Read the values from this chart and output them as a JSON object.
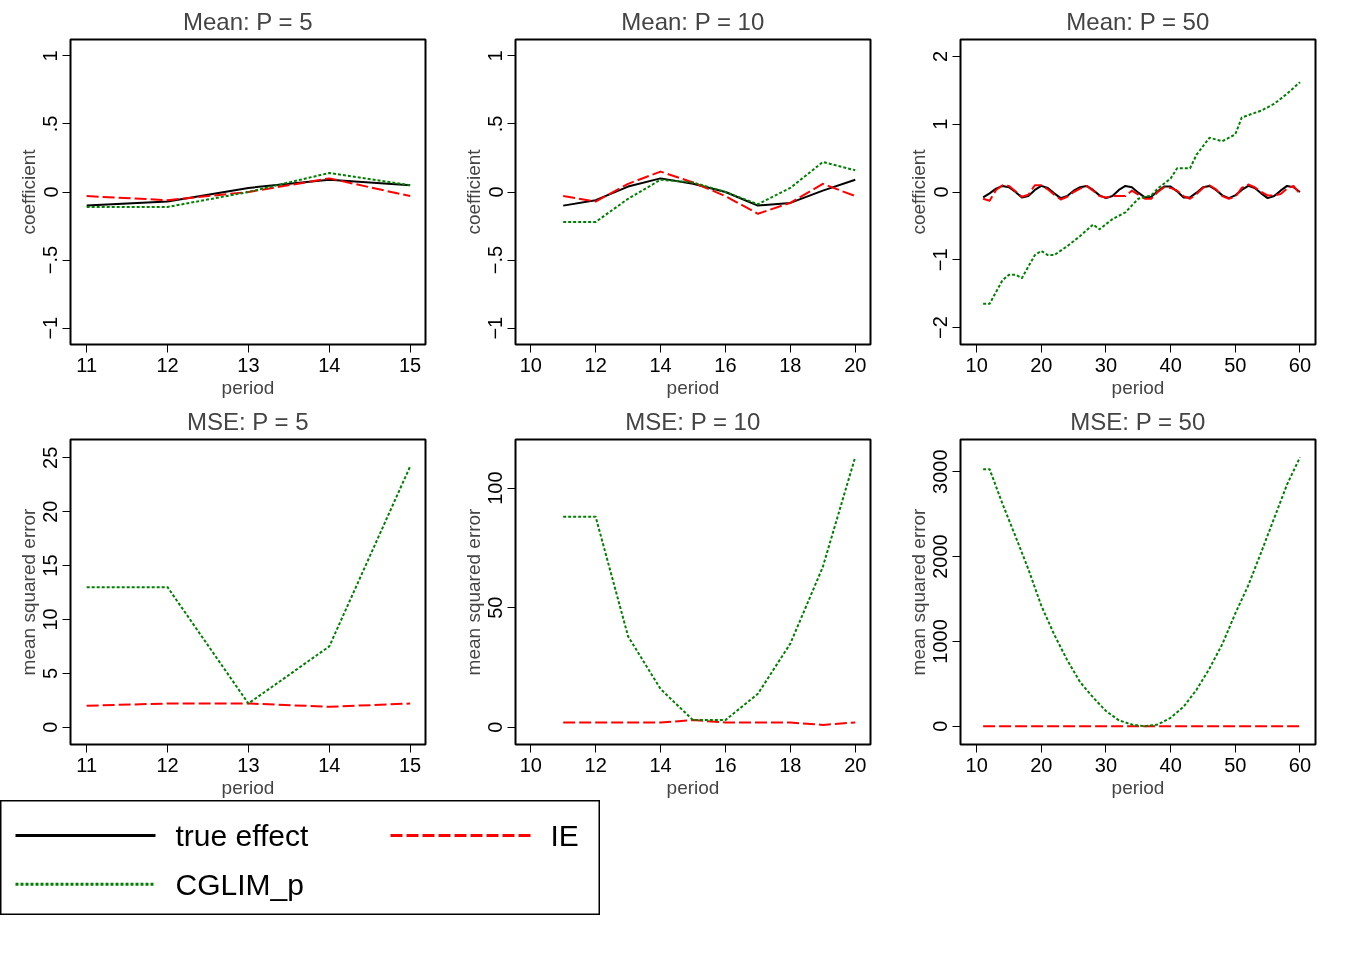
{
  "chart_data": [
    {
      "type": "line",
      "title": "Mean: P = 5",
      "xlabel": "period",
      "ylabel": "coefficient",
      "legend": "bottom",
      "grid": false,
      "xlim": [
        10.8,
        15.19
      ],
      "xticks": [
        11,
        12,
        13,
        14,
        15
      ],
      "ylim": [
        -1.12,
        1.12
      ],
      "yticks": [
        {
          "value": -1,
          "label": "−1"
        },
        {
          "value": -0.5,
          "label": "−.5"
        },
        0,
        {
          "value": 0.5,
          "label": ".5"
        },
        1
      ],
      "series": [
        {
          "name": "true effect",
          "color": "#000000",
          "line_style": "solid",
          "x": [
            11,
            12,
            13,
            14,
            15
          ],
          "values": [
            -0.1,
            -0.07,
            0.03,
            0.09,
            0.05
          ]
        },
        {
          "name": "IE",
          "color": "#ff0000",
          "line_style": "longdash",
          "x": [
            11,
            12,
            13,
            14,
            15
          ],
          "values": [
            -0.03,
            -0.06,
            0.0,
            0.1,
            -0.03
          ]
        },
        {
          "name": "CGLIM_p",
          "color": "#008000",
          "line_style": "dashed",
          "x": [
            11,
            12,
            13,
            14,
            15
          ],
          "values": [
            -0.11,
            -0.11,
            0.0,
            0.14,
            0.05
          ]
        }
      ]
    },
    {
      "type": "line",
      "title": "Mean: P = 10",
      "xlabel": "period",
      "ylabel": "coefficient",
      "legend": "bottom",
      "grid": false,
      "xlim": [
        9.53,
        20.47
      ],
      "xticks": [
        10,
        12,
        14,
        16,
        18,
        20
      ],
      "ylim": [
        -1.12,
        1.12
      ],
      "yticks": [
        {
          "value": -1,
          "label": "−1"
        },
        {
          "value": -0.5,
          "label": "−.5"
        },
        0,
        {
          "value": 0.5,
          "label": ".5"
        },
        1
      ],
      "series": [
        {
          "name": "true effect",
          "color": "#000000",
          "line_style": "solid",
          "x": [
            11,
            12,
            13,
            14,
            15,
            16,
            17,
            18,
            19,
            20
          ],
          "values": [
            -0.1,
            -0.06,
            0.04,
            0.1,
            0.06,
            0.0,
            -0.1,
            -0.08,
            0.01,
            0.09
          ]
        },
        {
          "name": "IE",
          "color": "#ff0000",
          "line_style": "longdash",
          "x": [
            11,
            12,
            13,
            14,
            15,
            16,
            17,
            18,
            19,
            20
          ],
          "values": [
            -0.03,
            -0.07,
            0.06,
            0.15,
            0.07,
            -0.03,
            -0.16,
            -0.08,
            0.06,
            -0.03
          ]
        },
        {
          "name": "CGLIM_p",
          "color": "#008000",
          "line_style": "dashed",
          "x": [
            11,
            12,
            13,
            14,
            15,
            16,
            17,
            18,
            19,
            20
          ],
          "values": [
            -0.22,
            -0.22,
            -0.05,
            0.09,
            0.07,
            0.0,
            -0.09,
            0.03,
            0.22,
            0.16
          ]
        }
      ]
    },
    {
      "type": "line",
      "title": "Mean: P = 50",
      "xlabel": "period",
      "ylabel": "coefficient",
      "legend": "bottom",
      "grid": false,
      "xlim": [
        7.5,
        62.4
      ],
      "xticks": [
        10,
        20,
        30,
        40,
        50,
        60
      ],
      "ylim": [
        -2.25,
        2.25
      ],
      "yticks": [
        {
          "value": -2,
          "label": "−2"
        },
        {
          "value": -1,
          "label": "−1"
        },
        0,
        1,
        2
      ],
      "series": [
        {
          "name": "true effect",
          "color": "#000000",
          "line_style": "solid",
          "x": [
            11,
            12,
            13,
            14,
            15,
            16,
            17,
            18,
            19,
            20,
            21,
            22,
            23,
            24,
            25,
            26,
            27,
            28,
            29,
            30,
            31,
            32,
            33,
            34,
            35,
            36,
            37,
            38,
            39,
            40,
            41,
            42,
            43,
            44,
            45,
            46,
            47,
            48,
            49,
            50,
            51,
            52,
            53,
            54,
            55,
            56,
            57,
            58,
            59,
            60
          ],
          "values": [
            -0.08,
            -0.02,
            0.05,
            0.09,
            0.07,
            0.0,
            -0.08,
            -0.06,
            0.03,
            0.09,
            0.06,
            -0.02,
            -0.09,
            -0.06,
            0.02,
            0.07,
            0.09,
            0.03,
            -0.05,
            -0.09,
            -0.06,
            0.03,
            0.09,
            0.07,
            -0.01,
            -0.08,
            -0.07,
            0.01,
            0.08,
            0.08,
            0.01,
            -0.08,
            -0.08,
            -0.01,
            0.07,
            0.09,
            0.03,
            -0.05,
            -0.09,
            -0.05,
            0.03,
            0.09,
            0.06,
            -0.02,
            -0.09,
            -0.06,
            0.02,
            0.09,
            0.07,
            0.0
          ]
        },
        {
          "name": "IE",
          "color": "#ff0000",
          "line_style": "longdash",
          "x": [
            11,
            12,
            13,
            14,
            15,
            16,
            17,
            18,
            19,
            20,
            21,
            22,
            23,
            24,
            25,
            26,
            27,
            28,
            29,
            30,
            31,
            32,
            33,
            34,
            35,
            36,
            37,
            38,
            39,
            40,
            41,
            42,
            43,
            44,
            45,
            46,
            47,
            48,
            49,
            50,
            51,
            52,
            53,
            54,
            55,
            56,
            57,
            58,
            59,
            60
          ],
          "values": [
            -0.1,
            -0.13,
            0.03,
            0.1,
            0.09,
            0.01,
            -0.07,
            -0.04,
            0.1,
            0.1,
            0.04,
            -0.04,
            -0.11,
            -0.07,
            0.0,
            0.05,
            0.09,
            0.02,
            -0.06,
            -0.08,
            -0.06,
            -0.06,
            -0.06,
            0.02,
            -0.04,
            -0.1,
            -0.1,
            0.0,
            0.07,
            0.06,
            0.02,
            -0.06,
            -0.1,
            -0.03,
            0.06,
            0.1,
            0.04,
            -0.06,
            -0.1,
            -0.07,
            0.06,
            0.11,
            0.07,
            0.0,
            -0.05,
            -0.05,
            -0.03,
            0.05,
            0.09,
            -0.03
          ]
        },
        {
          "name": "CGLIM_p",
          "color": "#008000",
          "line_style": "dashed",
          "x": [
            11,
            12,
            14,
            15,
            16,
            17,
            18,
            19,
            20,
            21,
            22,
            24,
            26,
            28,
            29,
            31,
            33,
            35,
            37,
            38,
            40,
            41,
            43,
            44,
            46,
            48,
            50,
            51,
            54,
            56,
            58,
            60
          ],
          "values": [
            -1.65,
            -1.65,
            -1.3,
            -1.22,
            -1.22,
            -1.27,
            -1.1,
            -0.93,
            -0.87,
            -0.93,
            -0.93,
            -0.8,
            -0.65,
            -0.48,
            -0.55,
            -0.4,
            -0.3,
            -0.1,
            -0.05,
            0.05,
            0.2,
            0.35,
            0.35,
            0.55,
            0.8,
            0.75,
            0.85,
            1.1,
            1.2,
            1.3,
            1.45,
            1.62
          ]
        }
      ]
    },
    {
      "type": "line",
      "title": "MSE: P = 5",
      "xlabel": "period",
      "ylabel": "mean squared error",
      "legend": "bottom",
      "grid": false,
      "xlim": [
        10.8,
        15.19
      ],
      "xticks": [
        11,
        12,
        13,
        14,
        15
      ],
      "ylim": [
        -1.6,
        26.7
      ],
      "yticks": [
        0,
        5,
        10,
        15,
        20,
        25
      ],
      "series": [
        {
          "name": "IE",
          "color": "#ff0000",
          "line_style": "longdash",
          "x": [
            11,
            12,
            13,
            14,
            15
          ],
          "values": [
            2.0,
            2.2,
            2.2,
            1.9,
            2.2
          ]
        },
        {
          "name": "CGLIM_p",
          "color": "#008000",
          "line_style": "dashed",
          "x": [
            11,
            12,
            13,
            14,
            15
          ],
          "values": [
            13,
            13,
            2.2,
            7.5,
            24.2
          ]
        }
      ]
    },
    {
      "type": "line",
      "title": "MSE: P = 10",
      "xlabel": "period",
      "ylabel": "mean squared error",
      "legend": "bottom",
      "grid": false,
      "xlim": [
        9.53,
        20.47
      ],
      "xticks": [
        10,
        12,
        14,
        16,
        18,
        20
      ],
      "ylim": [
        -7.2,
        120.3
      ],
      "yticks": [
        0,
        50,
        100
      ],
      "series": [
        {
          "name": "IE",
          "color": "#ff0000",
          "line_style": "longdash",
          "x": [
            11,
            12,
            13,
            14,
            15,
            16,
            17,
            18,
            19,
            20
          ],
          "values": [
            2,
            2,
            2,
            2,
            3,
            2,
            2,
            2,
            1,
            2
          ]
        },
        {
          "name": "CGLIM_p",
          "color": "#008000",
          "line_style": "dashed",
          "x": [
            11,
            12,
            13,
            14,
            15,
            16,
            17,
            18,
            19,
            20
          ],
          "values": [
            88,
            88,
            38,
            16,
            3,
            3,
            14,
            35,
            67,
            113
          ]
        }
      ]
    },
    {
      "type": "line",
      "title": "MSE: P = 50",
      "xlabel": "period",
      "ylabel": "mean squared error",
      "legend": "bottom",
      "grid": false,
      "xlim": [
        7.5,
        62.4
      ],
      "xticks": [
        10,
        20,
        30,
        40,
        50,
        60
      ],
      "ylim": [
        -215,
        3380
      ],
      "yticks": [
        0,
        1000,
        2000,
        3000
      ],
      "series": [
        {
          "name": "IE",
          "color": "#ff0000",
          "line_style": "longdash",
          "x": [
            11,
            20,
            30,
            40,
            50,
            60
          ],
          "values": [
            0,
            0,
            0,
            0,
            0,
            0
          ]
        },
        {
          "name": "CGLIM_p",
          "color": "#008000",
          "line_style": "dashed",
          "x": [
            11,
            12,
            14,
            16,
            18,
            20,
            22,
            24,
            26,
            28,
            30,
            32,
            34,
            36,
            38,
            40,
            42,
            44,
            46,
            48,
            50,
            52,
            54,
            56,
            58,
            60
          ],
          "values": [
            3030,
            3030,
            2620,
            2240,
            1850,
            1420,
            1080,
            780,
            520,
            340,
            180,
            70,
            20,
            0,
            20,
            100,
            230,
            430,
            680,
            970,
            1330,
            1660,
            2050,
            2450,
            2850,
            3170
          ]
        }
      ]
    }
  ]
}
